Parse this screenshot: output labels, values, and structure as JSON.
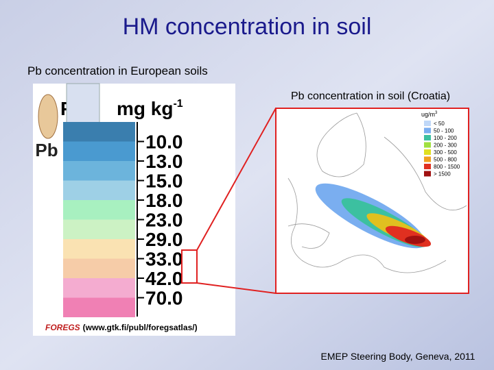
{
  "header": {
    "title": "HM concentration in soil",
    "subtitle": "Pb concentration in European soils"
  },
  "left_panel": {
    "logo_symbol": "Pb",
    "heading_symbol": "Pb",
    "unit": "mg kg",
    "unit_exponent": "-1",
    "scale_labels": [
      "10.0",
      "13.0",
      "15.0",
      "18.0",
      "23.0",
      "29.0",
      "33.0",
      "42.0",
      "70.0"
    ],
    "caption": {
      "source_name": "FOREGS",
      "url": "(www.gtk.fi/publ/foregsatlas/)"
    }
  },
  "right_panel": {
    "title": "Pb concentration in soil (Croatia)",
    "legend": {
      "unit": "ug/m",
      "unit_exponent": "3",
      "items": [
        "< 50",
        "50 - 100",
        "100 - 200",
        "200 - 300",
        "300 - 500",
        "500 - 800",
        "800 - 1500",
        "> 1500"
      ]
    }
  },
  "footer": "EMEP Steering Body, Geneva, 2011"
}
